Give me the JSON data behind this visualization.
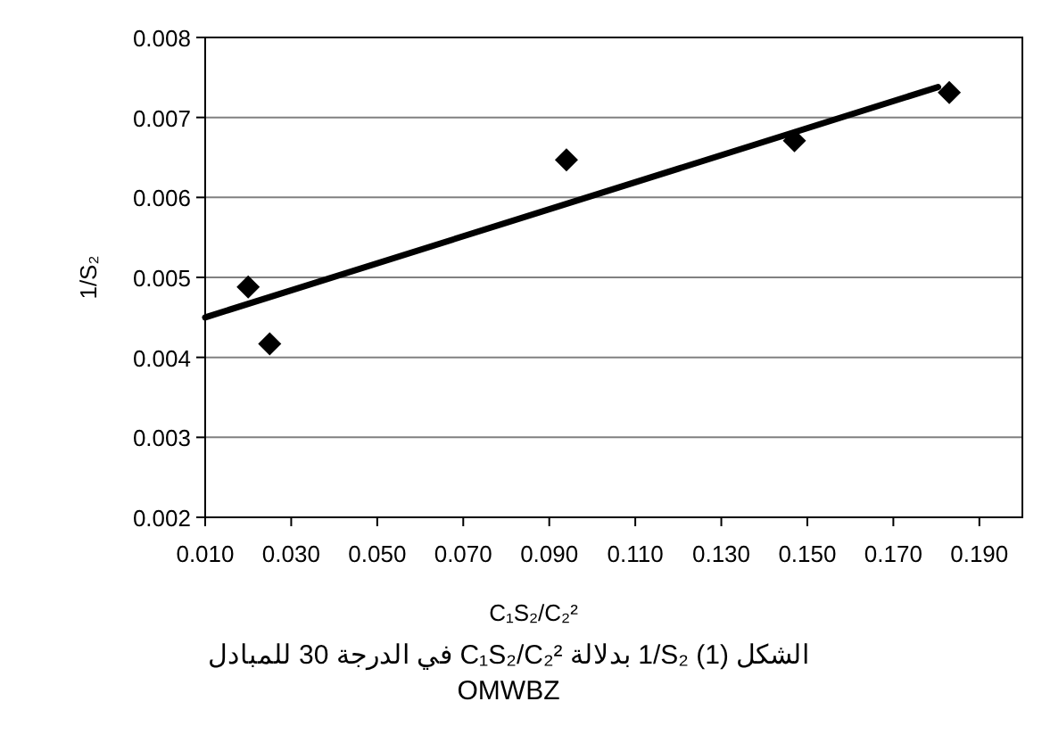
{
  "chart_data": {
    "type": "scatter",
    "xlabel": "C₁S₂/C₂²",
    "ylabel": "1/S₂",
    "annotations": [
      "الشكل (1)  1/S₂  بدلالة C₁S₂/C₂² في الدرجة  30  للمبادل OMWBZ"
    ],
    "series": [
      {
        "color": "#000000",
        "marker": "diamond",
        "x": [
          0.02,
          0.025,
          0.094,
          0.147,
          0.183
        ],
        "values": [
          0.00488,
          0.00417,
          0.00647,
          0.00671,
          0.00731
        ]
      },
      {
        "type": "line",
        "color": "#000000",
        "marker": "none",
        "line_style": "solid",
        "x": [
          0.01,
          0.1804
        ],
        "values": [
          0.0045,
          0.00738
        ]
      }
    ],
    "xlim": [
      0.01,
      0.2
    ],
    "xticks": [
      {
        "value": 0.01,
        "label": "0.010"
      },
      {
        "value": 0.03,
        "label": "0.030"
      },
      {
        "value": 0.05,
        "label": "0.050"
      },
      {
        "value": 0.07,
        "label": "0.070"
      },
      {
        "value": 0.09,
        "label": "0.090"
      },
      {
        "value": 0.11,
        "label": "0.110"
      },
      {
        "value": 0.13,
        "label": "0.130"
      },
      {
        "value": 0.15,
        "label": "0.150"
      },
      {
        "value": 0.17,
        "label": "0.170"
      },
      {
        "value": 0.19,
        "label": "0.190"
      }
    ],
    "ylim": [
      0.002,
      0.008
    ],
    "yticks": [
      {
        "value": 0.002,
        "label": "0.002"
      },
      {
        "value": 0.003,
        "label": "0.003"
      },
      {
        "value": 0.004,
        "label": "0.004"
      },
      {
        "value": 0.005,
        "label": "0.005"
      },
      {
        "value": 0.006,
        "label": "0.006"
      },
      {
        "value": 0.007,
        "label": "0.007"
      },
      {
        "value": 0.008,
        "label": "0.008"
      }
    ],
    "grid": "y"
  }
}
